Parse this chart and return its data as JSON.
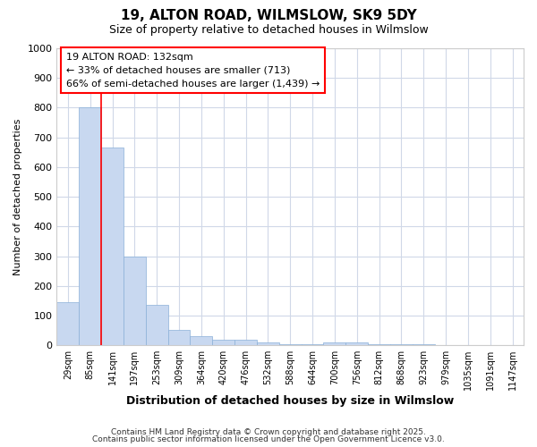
{
  "title": "19, ALTON ROAD, WILMSLOW, SK9 5DY",
  "subtitle": "Size of property relative to detached houses in Wilmslow",
  "xlabel": "Distribution of detached houses by size in Wilmslow",
  "ylabel": "Number of detached properties",
  "bar_color": "#c8d8f0",
  "bar_edge_color": "#8ab0d8",
  "background_color": "#ffffff",
  "grid_color": "#d0d8e8",
  "categories": [
    "29sqm",
    "85sqm",
    "141sqm",
    "197sqm",
    "253sqm",
    "309sqm",
    "364sqm",
    "420sqm",
    "476sqm",
    "532sqm",
    "588sqm",
    "644sqm",
    "700sqm",
    "756sqm",
    "812sqm",
    "868sqm",
    "923sqm",
    "979sqm",
    "1035sqm",
    "1091sqm",
    "1147sqm"
  ],
  "values": [
    145,
    800,
    665,
    300,
    135,
    52,
    30,
    18,
    18,
    10,
    5,
    3,
    10,
    10,
    3,
    3,
    5,
    0,
    0,
    0,
    0
  ],
  "ylim": [
    0,
    1000
  ],
  "yticks": [
    0,
    100,
    200,
    300,
    400,
    500,
    600,
    700,
    800,
    900,
    1000
  ],
  "red_line_index": 1.5,
  "annotation_title": "19 ALTON ROAD: 132sqm",
  "annotation_line1": "← 33% of detached houses are smaller (713)",
  "annotation_line2": "66% of semi-detached houses are larger (1,439) →",
  "footer_line1": "Contains HM Land Registry data © Crown copyright and database right 2025.",
  "footer_line2": "Contains public sector information licensed under the Open Government Licence v3.0."
}
